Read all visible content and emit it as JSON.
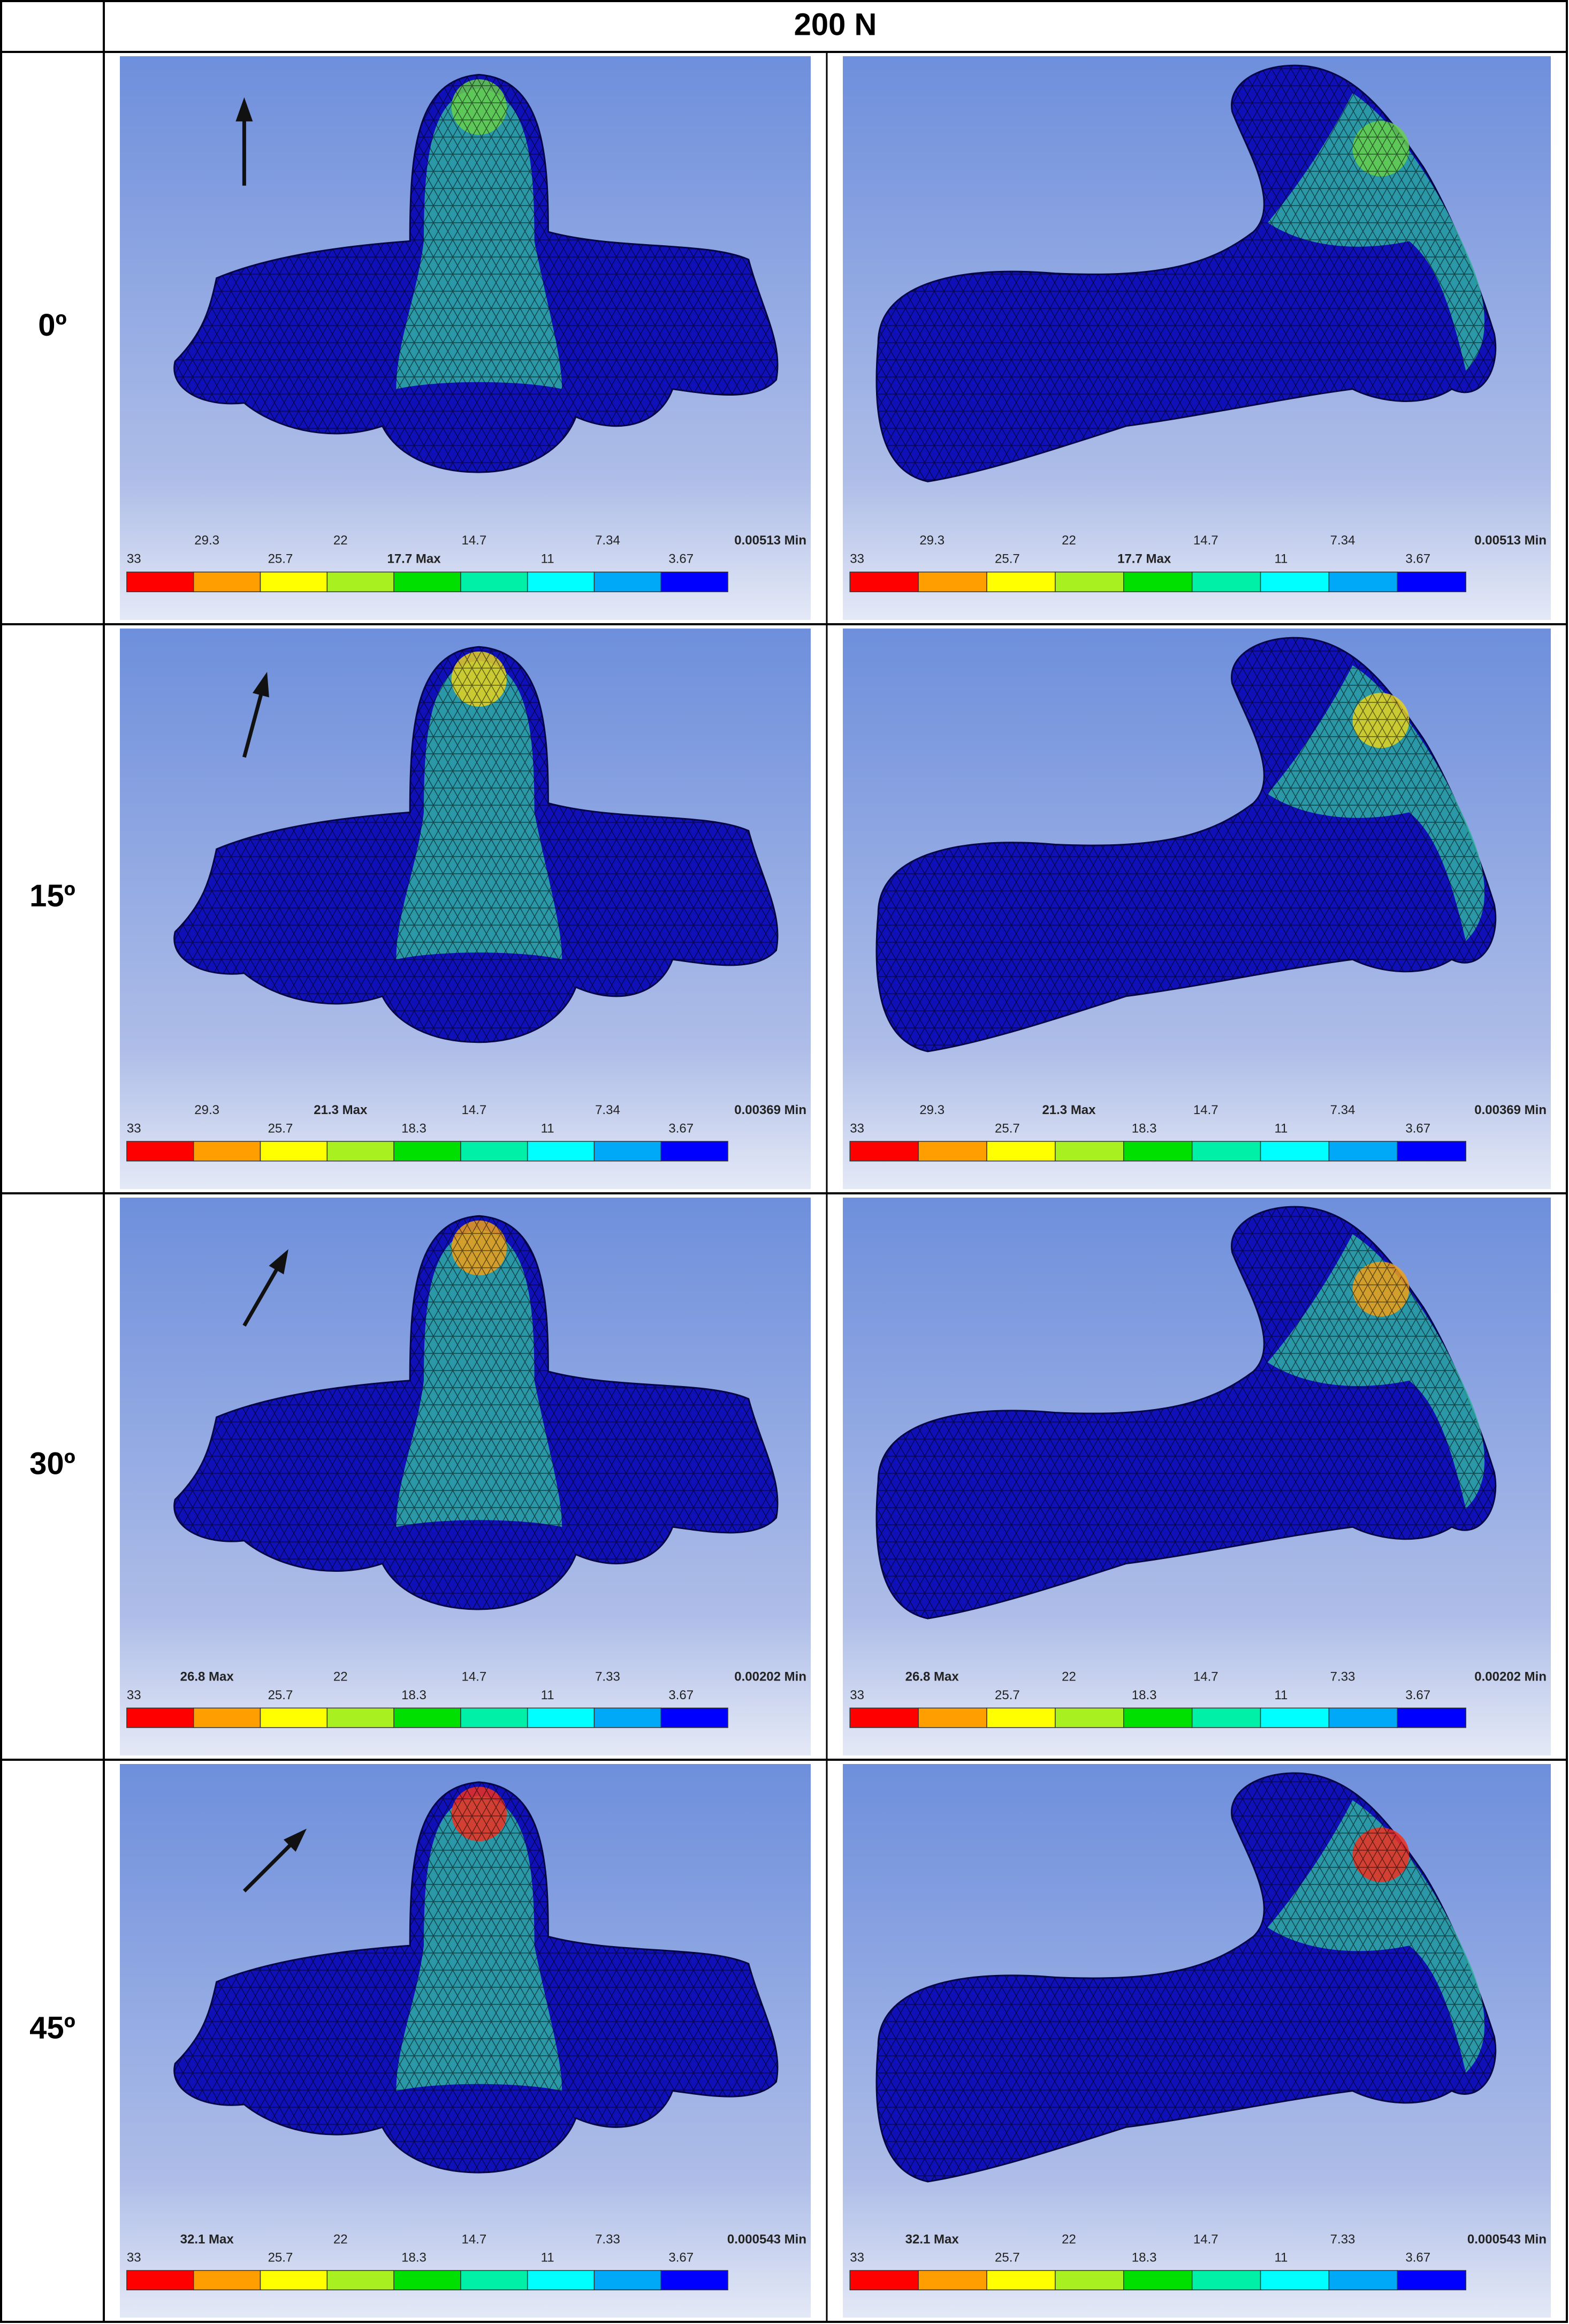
{
  "header": {
    "title": "200 N"
  },
  "rows": [
    {
      "label": "0º",
      "panels": [
        {
          "legend_top": [
            "29.3",
            "22",
            "14.7",
            "7.34",
            "0.00513 Min"
          ],
          "legend_bottom": [
            "33",
            "25.7",
            "17.7 Max",
            "11",
            "3.67"
          ]
        },
        {
          "legend_top": [
            "29.3",
            "22",
            "14.7",
            "7.34",
            "0.00513 Min"
          ],
          "legend_bottom": [
            "33",
            "25.7",
            "17.7 Max",
            "11",
            "3.67"
          ]
        }
      ]
    },
    {
      "label": "15º",
      "panels": [
        {
          "legend_top": [
            "29.3",
            "21.3 Max",
            "14.7",
            "7.34",
            "0.00369 Min"
          ],
          "legend_bottom": [
            "33",
            "25.7",
            "18.3",
            "11",
            "3.67"
          ]
        },
        {
          "legend_top": [
            "29.3",
            "21.3 Max",
            "14.7",
            "7.34",
            "0.00369 Min"
          ],
          "legend_bottom": [
            "33",
            "25.7",
            "18.3",
            "11",
            "3.67"
          ]
        }
      ]
    },
    {
      "label": "30º",
      "panels": [
        {
          "legend_top": [
            "26.8 Max",
            "22",
            "14.7",
            "7.33",
            "0.00202 Min"
          ],
          "legend_bottom": [
            "33",
            "25.7",
            "18.3",
            "11",
            "3.67"
          ]
        },
        {
          "legend_top": [
            "26.8 Max",
            "22",
            "14.7",
            "7.33",
            "0.00202 Min"
          ],
          "legend_bottom": [
            "33",
            "25.7",
            "18.3",
            "11",
            "3.67"
          ]
        }
      ]
    },
    {
      "label": "45º",
      "panels": [
        {
          "legend_top": [
            "32.1 Max",
            "22",
            "14.7",
            "7.33",
            "0.000543 Min"
          ],
          "legend_bottom": [
            "33",
            "25.7",
            "18.3",
            "11",
            "3.67"
          ]
        },
        {
          "legend_top": [
            "32.1 Max",
            "22",
            "14.7",
            "7.33",
            "0.000543 Min"
          ],
          "legend_bottom": [
            "33",
            "25.7",
            "18.3",
            "11",
            "3.67"
          ]
        }
      ]
    }
  ]
}
